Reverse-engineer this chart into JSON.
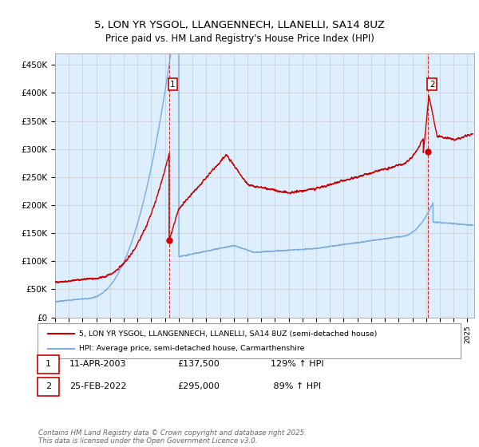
{
  "title": "5, LON YR YSGOL, LLANGENNECH, LLANELLI, SA14 8UZ",
  "subtitle": "Price paid vs. HM Land Registry's House Price Index (HPI)",
  "ylabel_ticks": [
    "£0",
    "£50K",
    "£100K",
    "£150K",
    "£200K",
    "£250K",
    "£300K",
    "£350K",
    "£400K",
    "£450K"
  ],
  "ytick_values": [
    0,
    50000,
    100000,
    150000,
    200000,
    250000,
    300000,
    350000,
    400000,
    450000
  ],
  "ylim": [
    0,
    470000
  ],
  "xlim_start": 1995.0,
  "xlim_end": 2025.5,
  "point1_x": 2003.28,
  "point1_y": 137500,
  "point2_x": 2022.15,
  "point2_y": 295000,
  "vline1_x": 2003.28,
  "vline2_x": 2022.15,
  "red_color": "#cc0000",
  "blue_color": "#7aabe0",
  "fill_color": "#ddeeff",
  "legend_red_label": "5, LON YR YSGOL, LLANGENNECH, LLANELLI, SA14 8UZ (semi-detached house)",
  "legend_blue_label": "HPI: Average price, semi-detached house, Carmarthenshire",
  "footer": "Contains HM Land Registry data © Crown copyright and database right 2025.\nThis data is licensed under the Open Government Licence v3.0.",
  "background_color": "#ffffff",
  "grid_color": "#cccccc"
}
